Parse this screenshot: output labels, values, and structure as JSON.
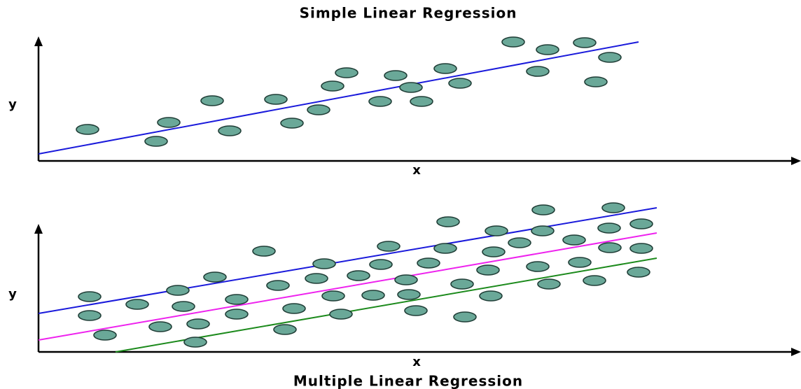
{
  "top": {
    "title": "Simple Linear Regression",
    "x_label": "x",
    "y_label": "y"
  },
  "bottom": {
    "title": "Multiple Linear Regression",
    "x_label": "x",
    "y_label": "y"
  }
}
